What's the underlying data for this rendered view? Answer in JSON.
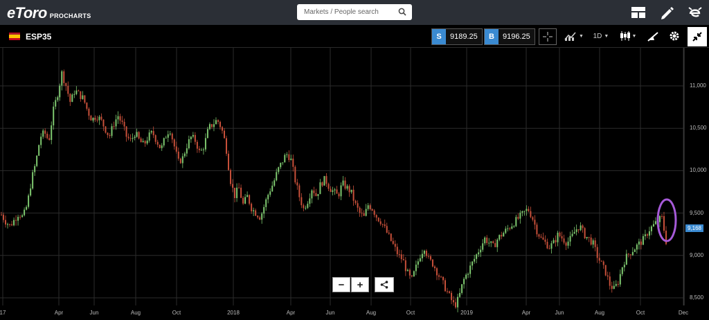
{
  "header": {
    "logo_text": "eToro",
    "logo_sub": "PROCHARTS",
    "search": {
      "placeholder": "Markets / People search",
      "icon": "search-icon"
    },
    "icons": [
      "layout-icon",
      "pencil-icon",
      "etoro-e-icon"
    ]
  },
  "instrument": {
    "symbol": "ESP35",
    "sell_label": "S",
    "sell_price": "9189.25",
    "buy_label": "B",
    "buy_price": "9196.25",
    "interval": "1D"
  },
  "toolbar": {
    "icons": [
      "crosshair-icon",
      "indicators-icon",
      "interval-dropdown",
      "candle-type-icon",
      "drawing-icon",
      "settings-icon",
      "minimize-icon"
    ]
  },
  "zoom": {
    "minus": "−",
    "plus": "+",
    "share_icon": "share-icon"
  },
  "colors": {
    "up": "#7ec86f",
    "down": "#c8503a",
    "accent": "#3a8ad1",
    "annotation": "#a65ad8"
  },
  "chart_data": {
    "type": "candlestick",
    "title": "",
    "xlabel": "",
    "ylabel": "",
    "ylim": [
      8300,
      11200
    ],
    "y_ticks": [
      "11,000",
      "10,500",
      "10,000",
      "9,500",
      "9,000",
      "8,500"
    ],
    "x_ticks": [
      "17",
      "Apr",
      "Jun",
      "Aug",
      "Oct",
      "2018",
      "Apr",
      "Jun",
      "Aug",
      "Oct",
      "2019",
      "Apr",
      "Jun",
      "Aug",
      "Oct",
      "Dec"
    ],
    "current_price_label": "9,168",
    "current_price": 9168,
    "series": [
      {
        "values": [
          9480,
          9400,
          9350,
          9420,
          9500,
          9450,
          9600,
          9900,
          10100,
          10400,
          10450,
          10350,
          10700,
          10900,
          11150,
          11000,
          10800,
          10950,
          10900,
          10850,
          10700,
          10600,
          10650,
          10600,
          10500,
          10400,
          10550,
          10650,
          10550,
          10400,
          10350,
          10450,
          10350,
          10300,
          10400,
          10450,
          10350,
          10250,
          10400,
          10500,
          10300,
          10100,
          10150,
          10300,
          10400,
          10350,
          10200,
          10300,
          10500,
          10550,
          10600,
          10500,
          10300,
          9900,
          9700,
          9800,
          9600,
          9700,
          9550,
          9500,
          9450,
          9600,
          9750,
          9850,
          10000,
          10100,
          10200,
          10150,
          9900,
          9700,
          9550,
          9650,
          9800,
          9700,
          9850,
          9900,
          9800,
          9750,
          9700,
          9850,
          9800,
          9750,
          9600,
          9500,
          9450,
          9600,
          9550,
          9450,
          9400,
          9300,
          9200,
          9100,
          9000,
          8950,
          8800,
          8700,
          8850,
          9000,
          9100,
          8950,
          8900,
          8800,
          8700,
          8600,
          8500,
          8400,
          8500,
          8700,
          8800,
          8900,
          9000,
          9100,
          9200,
          9150,
          9100,
          9200,
          9250,
          9300,
          9350,
          9400,
          9450,
          9500,
          9550,
          9450,
          9300,
          9200,
          9150,
          9100,
          9150,
          9250,
          9200,
          9150,
          9200,
          9300,
          9350,
          9250,
          9200,
          9150,
          9000,
          8900,
          8800,
          8650,
          8600,
          8700,
          8900,
          9000,
          9050,
          9100,
          9150,
          9200,
          9300,
          9350,
          9400,
          9450,
          9168
        ]
      }
    ]
  }
}
